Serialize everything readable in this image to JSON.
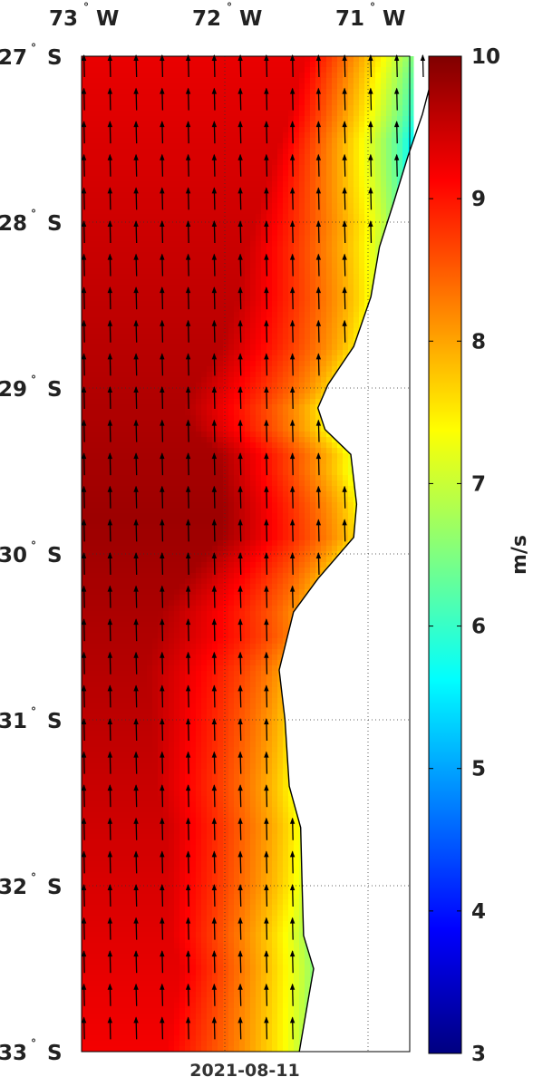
{
  "map": {
    "date_label": "2021-08-11",
    "lon_ticks": [
      {
        "deg": "73",
        "hemi": "W",
        "lon": -73
      },
      {
        "deg": "72",
        "hemi": "W",
        "lon": -72
      },
      {
        "deg": "71",
        "hemi": "W",
        "lon": -71
      }
    ],
    "lat_ticks": [
      {
        "deg": "27",
        "hemi": "S",
        "lat": -27
      },
      {
        "deg": "28",
        "hemi": "S",
        "lat": -28
      },
      {
        "deg": "29",
        "hemi": "S",
        "lat": -29
      },
      {
        "deg": "30",
        "hemi": "S",
        "lat": -30
      },
      {
        "deg": "31",
        "hemi": "S",
        "lat": -31
      },
      {
        "deg": "32",
        "hemi": "S",
        "lat": -32
      },
      {
        "deg": "33",
        "hemi": "S",
        "lat": -33
      }
    ],
    "lon_range": [
      -73.0,
      -70.5
    ],
    "lat_range": [
      -33.0,
      -27.0
    ],
    "grid": "dotted",
    "wind_direction": "northward (southerly wind)",
    "coastline": [
      [
        -70.5,
        -27.0
      ],
      [
        -70.55,
        -27.12
      ],
      [
        -70.62,
        -27.35
      ],
      [
        -70.72,
        -27.6
      ],
      [
        -70.82,
        -27.88
      ],
      [
        -70.92,
        -28.15
      ],
      [
        -70.98,
        -28.45
      ],
      [
        -71.1,
        -28.75
      ],
      [
        -71.28,
        -28.98
      ],
      [
        -71.35,
        -29.12
      ],
      [
        -71.3,
        -29.25
      ],
      [
        -71.12,
        -29.4
      ],
      [
        -71.08,
        -29.7
      ],
      [
        -71.1,
        -29.9
      ],
      [
        -71.25,
        -30.05
      ],
      [
        -71.35,
        -30.15
      ],
      [
        -71.52,
        -30.35
      ],
      [
        -71.62,
        -30.7
      ],
      [
        -71.58,
        -31.0
      ],
      [
        -71.55,
        -31.4
      ],
      [
        -71.47,
        -31.65
      ],
      [
        -71.46,
        -32.0
      ],
      [
        -71.45,
        -32.3
      ],
      [
        -71.38,
        -32.5
      ],
      [
        -71.42,
        -32.7
      ],
      [
        -71.48,
        -33.0
      ]
    ]
  },
  "colorbar": {
    "label": "m/s",
    "min": 3,
    "max": 10,
    "ticks": [
      "3",
      "4",
      "5",
      "6",
      "7",
      "8",
      "9",
      "10"
    ],
    "colormap": "jet"
  },
  "chart_data": {
    "type": "heatmap",
    "title": "",
    "date": "2021-08-11",
    "quantity": "wind speed",
    "unit": "m/s",
    "value_range": [
      3,
      10
    ],
    "xlim": [
      -73.0,
      -70.5
    ],
    "ylim": [
      -33.0,
      -27.0
    ],
    "offshore_max_speed_approx": 9.8,
    "coastal_speed_profile": [
      {
        "lat": -27.0,
        "speed": 5.0
      },
      {
        "lat": -27.5,
        "speed": 5.2
      },
      {
        "lat": -28.0,
        "speed": 6.6
      },
      {
        "lat": -28.5,
        "speed": 7.2
      },
      {
        "lat": -29.0,
        "speed": 7.6
      },
      {
        "lat": -29.5,
        "speed": 7.0
      },
      {
        "lat": -30.0,
        "speed": 7.6
      },
      {
        "lat": -30.5,
        "speed": 8.2
      },
      {
        "lat": -31.0,
        "speed": 7.6
      },
      {
        "lat": -31.5,
        "speed": 7.2
      },
      {
        "lat": -32.0,
        "speed": 7.0
      },
      {
        "lat": -32.5,
        "speed": 6.4
      },
      {
        "lat": -33.0,
        "speed": 6.8
      }
    ]
  }
}
